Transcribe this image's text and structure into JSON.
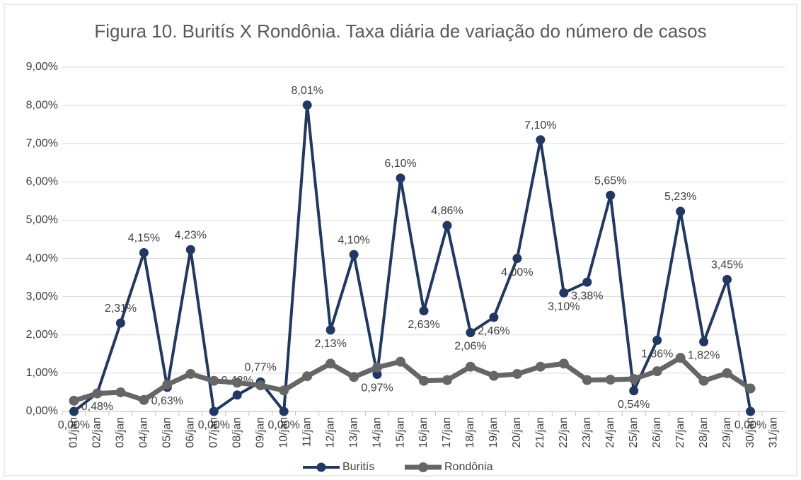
{
  "chart_data": {
    "type": "line",
    "title": "Figura 10. Buritís X Rondônia. Taxa diária de variação do número de casos",
    "categories": [
      "01/jan",
      "02/jan",
      "03/jan",
      "04/jan",
      "05/jan",
      "06/jan",
      "07/jan",
      "08/jan",
      "09/jan",
      "10/jan",
      "11/jan",
      "12/jan",
      "13/jan",
      "14/jan",
      "15/jan",
      "16/jan",
      "17/jan",
      "18/jan",
      "19/jan",
      "20/jan",
      "21/jan",
      "22/jan",
      "23/jan",
      "24/jan",
      "25/jan",
      "26/jan",
      "27/jan",
      "28/jan",
      "29/jan",
      "30/jan",
      "31/jan"
    ],
    "series": [
      {
        "name": "Buritís",
        "color": "#203864",
        "values": [
          0.0,
          0.48,
          2.31,
          4.15,
          0.63,
          4.23,
          0.0,
          0.43,
          0.77,
          0.0,
          8.01,
          2.13,
          4.1,
          0.97,
          6.1,
          2.63,
          4.86,
          2.06,
          2.46,
          4.0,
          7.1,
          3.1,
          3.38,
          5.65,
          0.54,
          1.86,
          5.23,
          1.82,
          3.45,
          0.0,
          null
        ],
        "value_labels": [
          "0,00%",
          "0,48%",
          "2,31%",
          "4,15%",
          "0,63%",
          "4,23%",
          "0,00%",
          "0,43%",
          "0,77%",
          "0,00%",
          "8,01%",
          "2,13%",
          "4,10%",
          "0,97%",
          "6,10%",
          "2,63%",
          "4,86%",
          "2,06%",
          "2,46%",
          "4,00%",
          "7,10%",
          "3,10%",
          "3,38%",
          "5,65%",
          "0,54%",
          "1,86%",
          "5,23%",
          "1,82%",
          "3,45%",
          "0,00%",
          null
        ]
      },
      {
        "name": "Rondônia",
        "color": "#666666",
        "values": [
          0.28,
          0.47,
          0.5,
          0.3,
          0.7,
          0.98,
          0.8,
          0.75,
          0.68,
          0.55,
          0.92,
          1.25,
          0.9,
          1.15,
          1.3,
          0.8,
          0.82,
          1.17,
          0.93,
          0.98,
          1.17,
          1.25,
          0.82,
          0.83,
          0.85,
          1.05,
          1.4,
          0.8,
          1.0,
          0.6,
          null
        ]
      }
    ],
    "ylim": [
      0,
      9
    ],
    "yticks": [
      {
        "value": 0,
        "label": "0,00%"
      },
      {
        "value": 1,
        "label": "1,00%"
      },
      {
        "value": 2,
        "label": "2,00%"
      },
      {
        "value": 3,
        "label": "3,00%"
      },
      {
        "value": 4,
        "label": "4,00%"
      },
      {
        "value": 5,
        "label": "5,00%"
      },
      {
        "value": 6,
        "label": "6,00%"
      },
      {
        "value": 7,
        "label": "7,00%"
      },
      {
        "value": 8,
        "label": "8,00%"
      },
      {
        "value": 9,
        "label": "9,00%"
      }
    ],
    "grid": true,
    "legend": "bottom"
  }
}
